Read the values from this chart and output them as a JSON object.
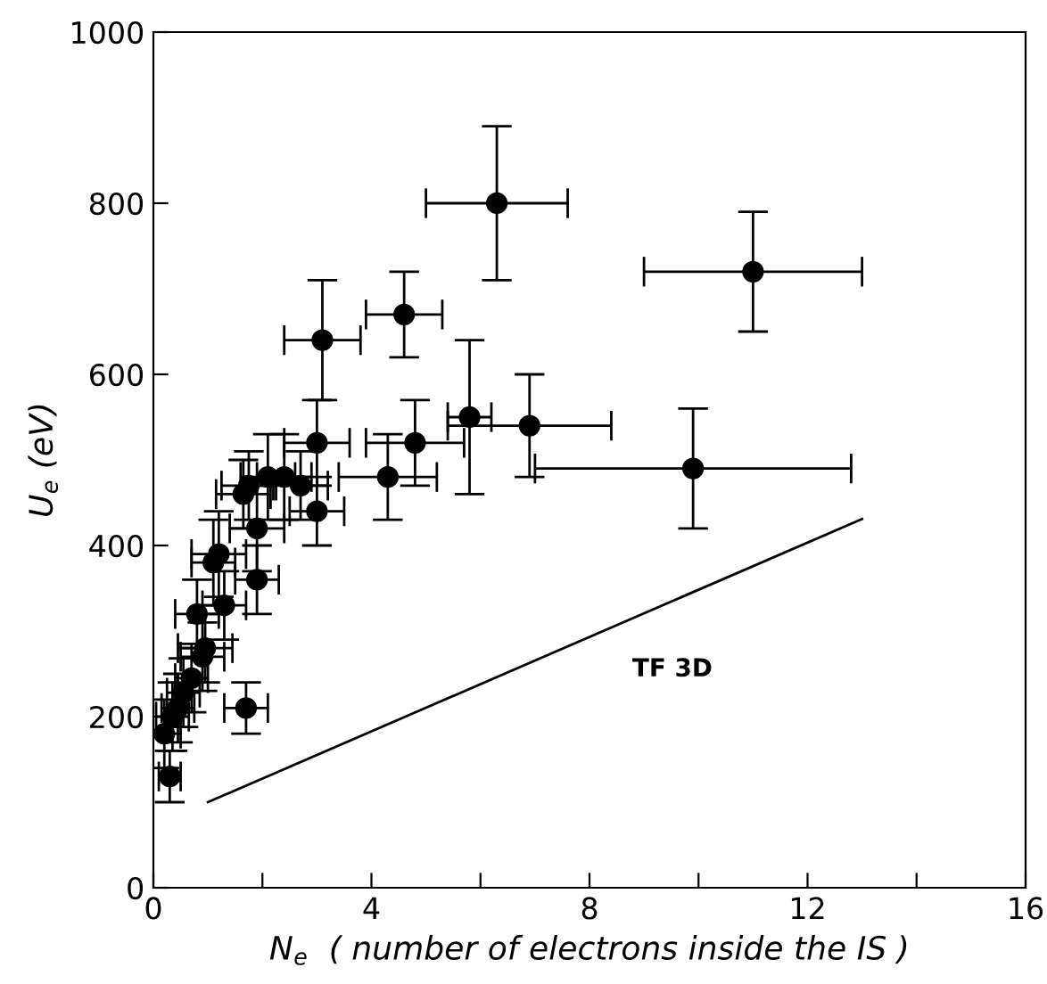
{
  "chart_data": {
    "type": "scatter",
    "xlabel": "N$_{e}$  ( number of electrons inside the IS )",
    "ylabel": "U$_{e}$ (eV)",
    "xlim": [
      0,
      16
    ],
    "ylim": [
      0,
      1000
    ],
    "xticks": [
      0,
      {
        "value": 2,
        "label": null
      },
      4,
      {
        "value": 6,
        "label": null
      },
      8,
      {
        "value": 10,
        "label": null
      },
      12,
      {
        "value": 14,
        "label": null
      },
      16
    ],
    "yticks": [
      0,
      200,
      400,
      600,
      800,
      1000
    ],
    "grid": false,
    "legend": false,
    "series": [
      {
        "color": "#000000",
        "marker": "circle",
        "x": [
          0.3,
          0.2,
          0.35,
          0.45,
          0.55,
          0.7,
          0.9,
          0.95,
          0.8,
          1.1,
          1.2,
          1.3,
          1.7,
          1.65,
          1.75,
          1.9,
          1.9,
          2.1,
          2.4,
          2.7,
          3.0,
          3.0,
          3.1,
          4.3,
          4.6,
          4.8,
          5.8,
          6.3,
          6.9,
          9.9,
          11.0
        ],
        "values": [
          130,
          180,
          200,
          210,
          228,
          245,
          270,
          280,
          320,
          380,
          390,
          330,
          210,
          460,
          470,
          360,
          420,
          480,
          480,
          470,
          520,
          440,
          640,
          480,
          670,
          520,
          550,
          800,
          540,
          490,
          720
        ],
        "errors": [
          30,
          40,
          40,
          40,
          40,
          40,
          40,
          40,
          40,
          50,
          50,
          40,
          30,
          40,
          40,
          40,
          50,
          50,
          50,
          40,
          50,
          40,
          70,
          50,
          50,
          50,
          90,
          90,
          60,
          70,
          70
        ],
        "xerrors": [
          0.2,
          0.3,
          0.3,
          0.3,
          0.3,
          0.3,
          0.4,
          0.5,
          0.4,
          0.4,
          0.5,
          0.4,
          0.4,
          0.5,
          0.5,
          0.4,
          0.5,
          0.5,
          0.5,
          0.5,
          0.6,
          0.5,
          0.7,
          0.9,
          0.7,
          0.9,
          0.4,
          1.3,
          1.5,
          2.9,
          2.0
        ]
      },
      {
        "type": "line",
        "color": "#000000",
        "marker": "none",
        "x": [
          1,
          13
        ],
        "values": [
          100,
          431
        ]
      }
    ],
    "annotations": [
      "TF 3D"
    ]
  }
}
